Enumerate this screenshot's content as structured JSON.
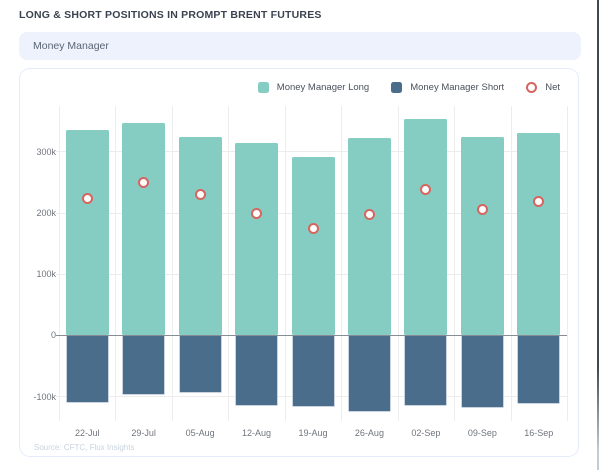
{
  "header": {
    "title": "LONG & SHORT POSITIONS IN PROMPT BRENT FUTURES",
    "filter_label": "Money Manager"
  },
  "source_note": "Source: CFTC, Flux Insights",
  "colors": {
    "long_bar": "#85CDC3",
    "short_bar": "#4A6D8B",
    "net_marker": "#D6655F",
    "pill_bg": "#EEF2FC",
    "card_border": "#E4ECFB",
    "grid": "#ECECEC",
    "zero_line": "#878D96",
    "axis_text": "#70757D"
  },
  "chart_data": {
    "type": "bar",
    "title": "LONG & SHORT POSITIONS IN PROMPT BRENT FUTURES",
    "xlabel": "",
    "ylabel": "",
    "categories": [
      "22-Jul",
      "29-Jul",
      "05-Aug",
      "12-Aug",
      "19-Aug",
      "26-Aug",
      "02-Sep",
      "09-Sep",
      "16-Sep"
    ],
    "series": [
      {
        "name": "Money Manager Long",
        "type": "bar",
        "color": "#85CDC3",
        "values": [
          335000,
          348000,
          325000,
          314000,
          292000,
          323000,
          354000,
          324000,
          331000
        ]
      },
      {
        "name": "Money Manager Short",
        "type": "bar",
        "color": "#4A6D8B",
        "values": [
          -111000,
          -98000,
          -94000,
          -115000,
          -117000,
          -125000,
          -115000,
          -118000,
          -112000
        ]
      },
      {
        "name": "Net",
        "type": "scatter",
        "color": "#D6655F",
        "values": [
          224000,
          250000,
          231000,
          199000,
          175000,
          198000,
          239000,
          206000,
          219000
        ]
      }
    ],
    "yticks": [
      300000,
      200000,
      100000,
      0,
      -100000
    ],
    "ytick_labels": [
      "300k",
      "200k",
      "100k",
      "0",
      "-100k"
    ],
    "ylim": [
      -140000,
      375000
    ],
    "grid": true,
    "legend_position": "top-right"
  }
}
